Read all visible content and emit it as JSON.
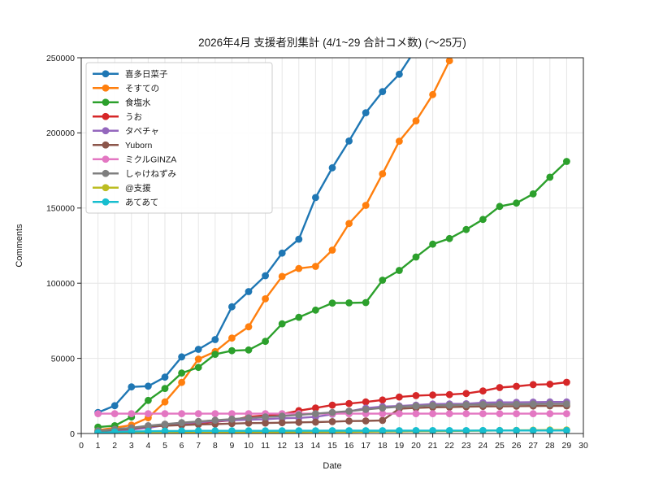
{
  "chart_data": {
    "type": "line",
    "title": "2026年4月 支援者別集計 (4/1~29 合計コメ数) (〜25万)",
    "xlabel": "Date",
    "ylabel": "Comments",
    "xlim": [
      0,
      30
    ],
    "ylim": [
      0,
      250000
    ],
    "xticks": [
      0,
      1,
      2,
      3,
      4,
      5,
      6,
      7,
      8,
      9,
      10,
      11,
      12,
      13,
      14,
      15,
      16,
      17,
      18,
      19,
      20,
      21,
      22,
      23,
      24,
      25,
      26,
      27,
      28,
      29,
      30
    ],
    "yticks": [
      0,
      50000,
      100000,
      150000,
      200000,
      250000
    ],
    "grid": true,
    "legend_position": "upper-left",
    "marker": "circle",
    "x": [
      1,
      2,
      3,
      4,
      5,
      6,
      7,
      8,
      9,
      10,
      11,
      12,
      13,
      14,
      15,
      16,
      17,
      18,
      19,
      20,
      21,
      22,
      23,
      24,
      25,
      26,
      27,
      28,
      29
    ],
    "series": [
      {
        "name": "喜多日菜子",
        "color": "#1f77b4",
        "values": [
          14000,
          18500,
          31000,
          31500,
          37500,
          51000,
          56000,
          62500,
          84300,
          94400,
          105000,
          120000,
          129300,
          157000,
          176800,
          194600,
          213400,
          227500,
          239000,
          256000,
          null,
          null,
          null,
          null,
          null,
          null,
          null,
          null,
          null
        ]
      },
      {
        "name": "そすての",
        "color": "#ff7f0e",
        "values": [
          2200,
          3800,
          5600,
          10500,
          21000,
          34000,
          49500,
          54500,
          63500,
          71000,
          89600,
          104500,
          109800,
          111200,
          122000,
          139700,
          151800,
          172800,
          194500,
          208000,
          225500,
          248000,
          265000,
          null,
          null,
          null,
          null,
          null,
          null
        ]
      },
      {
        "name": "食塩水",
        "color": "#2ca02c",
        "values": [
          4300,
          5200,
          11000,
          22000,
          30000,
          40200,
          44000,
          52700,
          55100,
          55600,
          61300,
          73000,
          77300,
          82100,
          86800,
          86900,
          87100,
          102000,
          108500,
          117400,
          126000,
          129700,
          135700,
          142400,
          151100,
          153300,
          159400,
          170500,
          181000
        ]
      },
      {
        "name": "うお",
        "color": "#d62728",
        "values": [
          800,
          1600,
          2800,
          4600,
          5400,
          6200,
          7000,
          7800,
          8800,
          11100,
          12000,
          12900,
          15200,
          17000,
          18900,
          19900,
          21000,
          22300,
          24300,
          25200,
          25600,
          25900,
          26600,
          28300,
          30600,
          31400,
          32500,
          32800,
          34100
        ]
      },
      {
        "name": "タペチャ",
        "color": "#9467bd",
        "values": [
          1000,
          1800,
          2600,
          3800,
          5600,
          6800,
          7600,
          8200,
          8800,
          9200,
          9500,
          10200,
          10400,
          11100,
          12800,
          14700,
          16900,
          17900,
          18300,
          18900,
          19600,
          19700,
          19800,
          20500,
          20700,
          20700,
          20900,
          21000,
          21000
        ]
      },
      {
        "name": "Yuborn",
        "color": "#8c564b",
        "values": [
          1500,
          2400,
          3300,
          4800,
          5200,
          5600,
          6000,
          6300,
          6600,
          6900,
          7000,
          7200,
          7400,
          7600,
          7900,
          8300,
          8400,
          8700,
          16500,
          17000,
          17400,
          17600,
          17800,
          18000,
          18100,
          18200,
          18300,
          18400,
          18400
        ]
      },
      {
        "name": "ミクルGINZA",
        "color": "#e377c2",
        "values": [
          13200,
          13200,
          13200,
          13200,
          13200,
          13200,
          13200,
          13200,
          13200,
          13200,
          13200,
          13200,
          13200,
          13200,
          13200,
          13200,
          13200,
          13200,
          13200,
          13200,
          13200,
          13200,
          13200,
          13200,
          13200,
          13200,
          13200,
          13200,
          13200
        ]
      },
      {
        "name": "しゃけねずみ",
        "color": "#7f7f7f",
        "values": [
          1800,
          2800,
          3800,
          5200,
          6200,
          7200,
          8000,
          8800,
          9600,
          10400,
          11000,
          11600,
          12400,
          13200,
          14000,
          14900,
          16000,
          17000,
          17800,
          18300,
          18700,
          18900,
          19100,
          19300,
          19400,
          19500,
          19600,
          19700,
          19700
        ]
      },
      {
        "name": "@支援",
        "color": "#bcbd22",
        "values": [
          200,
          250,
          300,
          350,
          400,
          450,
          500,
          550,
          600,
          700,
          750,
          800,
          900,
          1000,
          1050,
          1100,
          1200,
          1300,
          1400,
          1500,
          1600,
          1700,
          1800,
          1900,
          2000,
          2100,
          2200,
          2300,
          2400
        ]
      },
      {
        "name": "あてあて",
        "color": "#17becf",
        "values": [
          500,
          1000,
          1300,
          1500,
          1600,
          1700,
          1800,
          1800,
          1800,
          1800,
          1800,
          1850,
          1850,
          1850,
          1900,
          1900,
          1900,
          1900,
          1900,
          1950,
          1950,
          1950,
          1950,
          2000,
          2000,
          2000,
          2000,
          2000,
          2000
        ]
      }
    ]
  }
}
